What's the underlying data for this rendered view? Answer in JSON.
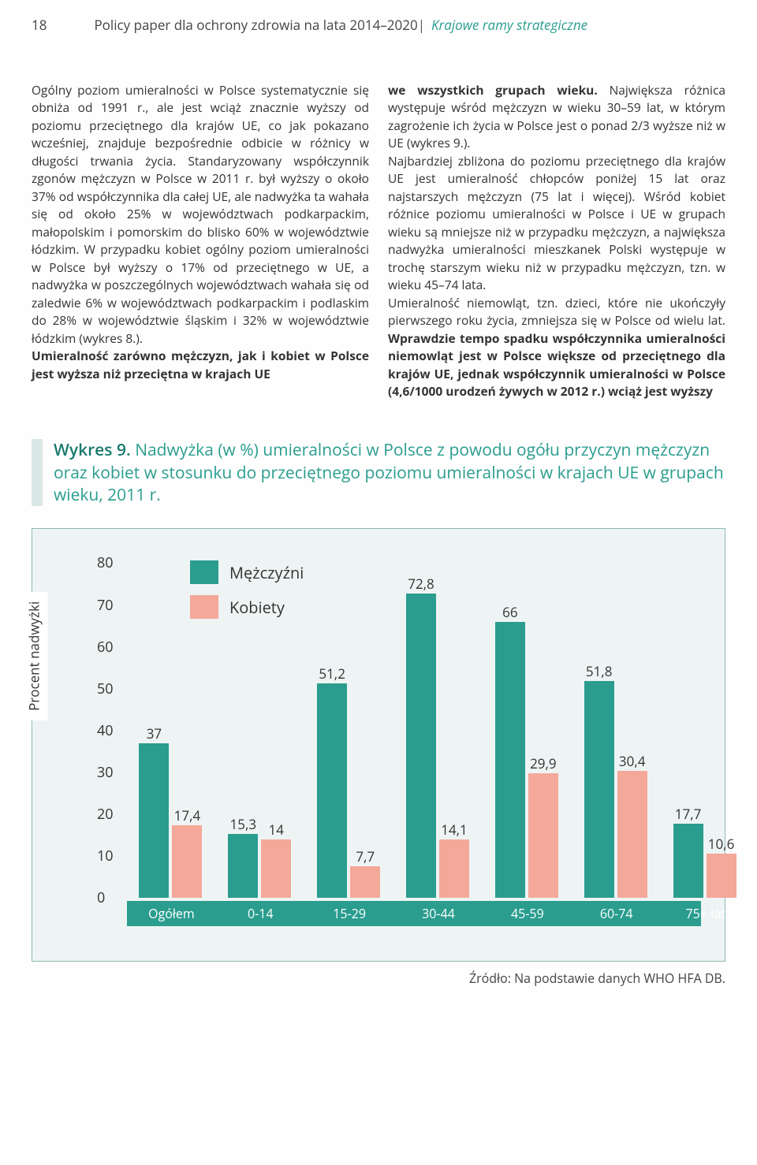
{
  "header": {
    "page_number": "18",
    "title": "Policy paper dla ochrony zdrowia na lata 2014–2020",
    "subtitle": "Krajowe ramy strategiczne"
  },
  "body": {
    "left_column": "Ogólny poziom umieralności w Polsce systematycznie się obniża od 1991 r., ale jest wciąż znacznie wyższy od poziomu przeciętnego dla krajów UE, co jak pokazano wcześniej, znajduje bezpośrednie odbicie w różnicy w długości trwania życia. Standaryzowany współczynnik zgonów mężczyzn w Polsce w 2011 r. był wyższy o około 37% od współczynnika dla całej UE, ale nadwyżka ta wahała się od około 25% w województwach podkarpackim, małopolskim i pomorskim do blisko 60% w województwie łódzkim. W przypadku kobiet ogólny poziom umieralności w Polsce był wyższy o 17% od przeciętnego w UE, a nadwyżka w poszczególnych województwach wahała się od zaledwie 6% w województwach podkarpackim i podlaskim do 28% w województwie śląskim i 32% w województwie łódzkim (wykres 8.).",
    "left_bold": "Umieralność zarówno mężczyzn, jak i kobiet w Polsce jest wyższa niż przeciętna w krajach UE ",
    "right_bold_start": "we wszystkich grupach wieku.",
    "right_column_1": " Największa różnica występuje wśród mężczyzn w wieku 30–59 lat, w którym zagrożenie ich życia w Polsce jest o ponad 2/3 wyższe niż w UE (wykres 9.).",
    "right_column_2": "Najbardziej zbliżona do poziomu przeciętnego dla krajów UE jest umieralność chłopców poniżej 15 lat oraz najstarszych mężczyzn (75 lat i więcej). Wśród kobiet różnice poziomu umieralności w Polsce i UE w grupach wieku są mniejsze niż w przypadku mężczyzn, a największa nadwyżka umieralności mieszkanek Polski występuje w trochę starszym wieku niż w przypadku mężczyzn, tzn. w wieku 45–74 lata.",
    "right_column_3": "Umieralność niemowląt, tzn. dzieci, które nie ukończyły pierwszego roku życia, zmniejsza się w Polsce od wielu lat. ",
    "right_bold_end": "Wprawdzie tempo spadku współczynnika umieralności niemowląt jest w Polsce większe od przeciętnego dla krajów UE, jednak współczynnik umieralności w Polsce (4,6/1000 urodzeń żywych w 2012 r.) wciąż jest wyższy"
  },
  "chart": {
    "label": "Wykres 9.",
    "title": "Nadwyżka (w %) umieralności w Polsce z powodu ogółu przyczyn mężczyzn oraz kobiet w stosunku do przeciętnego poziomu umieralności w krajach UE w grupach wieku, 2011 r.",
    "type": "bar",
    "y_axis_label": "Procent nadwyżki",
    "ylim": [
      0,
      80
    ],
    "ytick_step": 10,
    "yticks": [
      "0",
      "10",
      "20",
      "30",
      "40",
      "50",
      "60",
      "70",
      "80"
    ],
    "legend": {
      "series1": {
        "label": "Mężczyźni",
        "color": "#2a9d8f"
      },
      "series2": {
        "label": "Kobiety",
        "color": "#f4a89a"
      }
    },
    "categories": [
      "Ogółem",
      "0-14",
      "15-29",
      "30-44",
      "45-59",
      "60-74",
      "75+ lat"
    ],
    "series1_values": [
      37,
      15.3,
      51.2,
      72.8,
      66,
      51.8,
      17.7
    ],
    "series1_labels": [
      "37",
      "15,3",
      "51,2",
      "72,8",
      "66",
      "51,8",
      "17,7"
    ],
    "series2_values": [
      17.4,
      14,
      7.7,
      14.1,
      29.9,
      30.4,
      10.6
    ],
    "series2_labels": [
      "17,4",
      "14",
      "7,7",
      "14,1",
      "29,9",
      "30,4",
      "10,6"
    ],
    "background_color": "#eef4f4",
    "border_color": "#8fb9b4",
    "xaxis_band_color": "#2a9d8f",
    "source": "Źródło: Na podstawie danych WHO HFA DB."
  }
}
